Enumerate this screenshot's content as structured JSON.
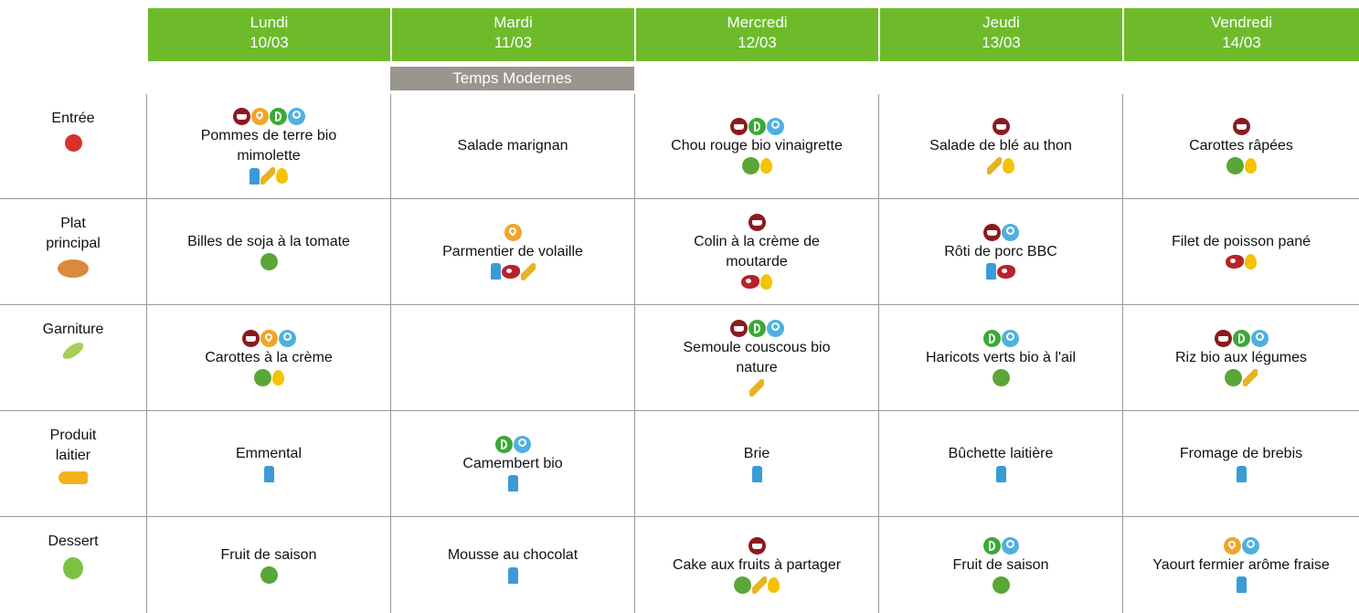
{
  "header": {
    "days": [
      {
        "name": "Lundi",
        "date": "10/03"
      },
      {
        "name": "Mardi",
        "date": "11/03"
      },
      {
        "name": "Mercredi",
        "date": "12/03"
      },
      {
        "name": "Jeudi",
        "date": "13/03"
      },
      {
        "name": "Vendredi",
        "date": "14/03"
      }
    ]
  },
  "banner": "Temps Modernes",
  "rows": [
    {
      "label": "Entrée",
      "cells": [
        "Pommes de terre bio mimolette",
        "Salade marignan",
        "Chou rouge bio vinaigrette",
        "Salade de blé au thon",
        "Carottes râpées"
      ]
    },
    {
      "label": "Plat principal",
      "cells": [
        "Billes de soja à la tomate",
        "Parmentier de volaille",
        "Colin à la crème de moutarde",
        "Rôti de porc BBC",
        "Filet de poisson pané"
      ]
    },
    {
      "label": "Garniture",
      "cells": [
        "Carottes à la crème",
        null,
        "Semoule couscous bio nature",
        "Haricots verts bio à l'ail",
        "Riz bio aux légumes"
      ]
    },
    {
      "label": "Produit laitier",
      "cells": [
        "Emmental",
        "Camembert bio",
        "Brie",
        "Bûchette laitière",
        "Fromage de brebis"
      ]
    },
    {
      "label": "Dessert",
      "cells": [
        "Fruit de saison",
        "Mousse au chocolat",
        "Cake aux fruits à partager",
        "Fruit de saison",
        "Yaourt fermier arôme fraise"
      ]
    }
  ]
}
